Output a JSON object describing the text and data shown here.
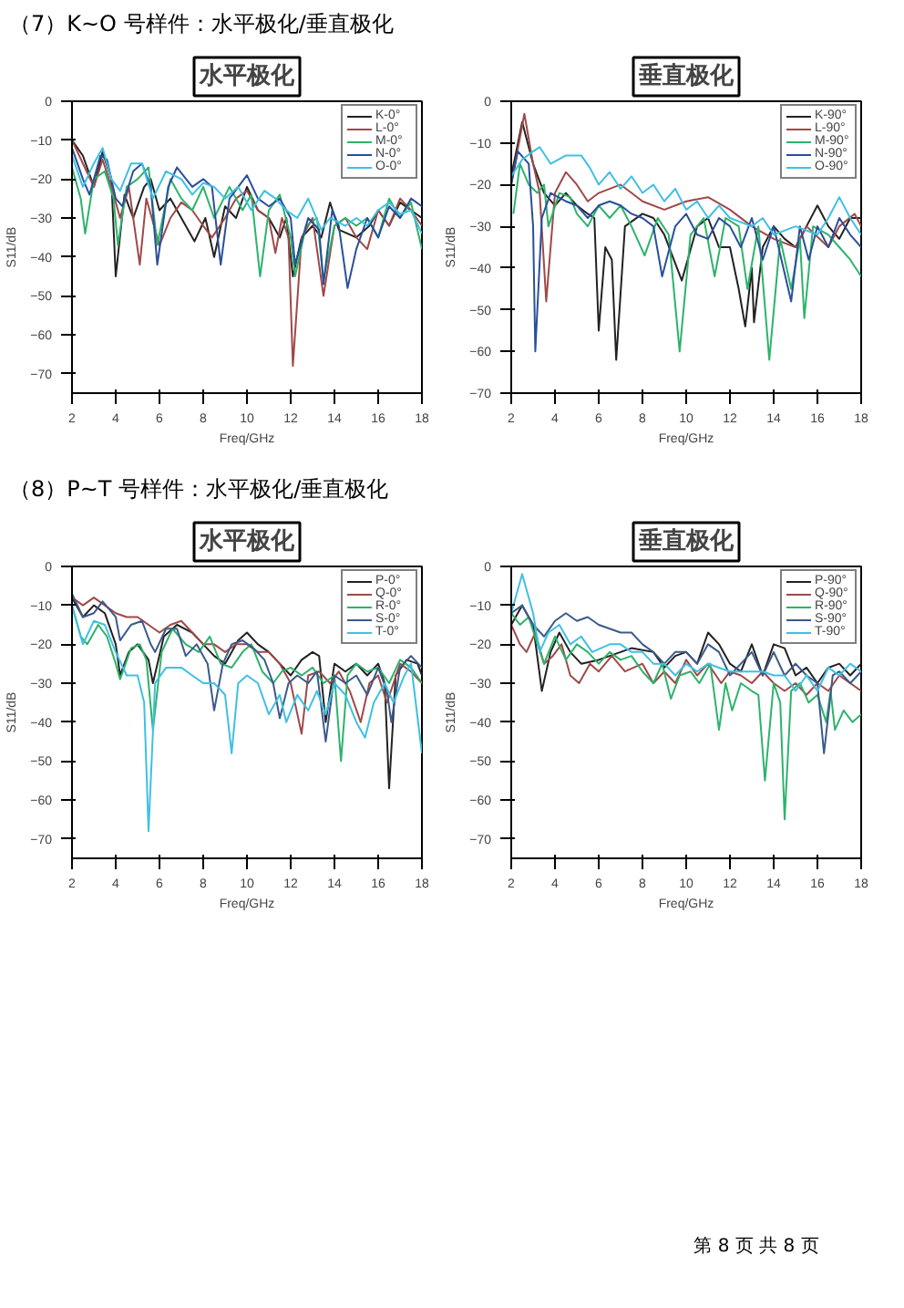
{
  "chart_data": [
    {
      "type": "line",
      "title": "水平极化",
      "annotations": [
        "（7）K~O 号样件：水平极化/垂直极化"
      ],
      "xlabel": "Freq/GHz",
      "ylabel": "S11/dB",
      "xlim": [
        2,
        18
      ],
      "xticks": [
        2,
        4,
        6,
        8,
        10,
        12,
        14,
        16,
        18
      ],
      "ylim": [
        -75,
        0
      ],
      "yticks": [
        0,
        -10,
        -20,
        -30,
        -40,
        -50,
        -60,
        -70
      ],
      "legend": "top right",
      "grid": false,
      "series": [
        {
          "name": "K-0°",
          "color": "#222222",
          "x": [
            2,
            2.5,
            3,
            3.4,
            3.8,
            4.0,
            4.4,
            4.8,
            5.3,
            5.6,
            6.0,
            6.5,
            7,
            7.6,
            8.1,
            8.5,
            9,
            9.5,
            10,
            10.5,
            11,
            11.5,
            11.8,
            12.1,
            12.5,
            13,
            13.4,
            13.8,
            14.2,
            15,
            15.6,
            16,
            16.5,
            17,
            17.5,
            18
          ],
          "values": [
            -10,
            -14,
            -22,
            -13,
            -20,
            -45,
            -24,
            -30,
            -22,
            -20,
            -28,
            -25,
            -30,
            -36,
            -30,
            -40,
            -27,
            -30,
            -22,
            -28,
            -30,
            -35,
            -30,
            -45,
            -35,
            -32,
            -35,
            -26,
            -33,
            -35,
            -32,
            -28,
            -32,
            -26,
            -28,
            -30
          ]
        },
        {
          "name": "L-0°",
          "color": "#a04848",
          "x": [
            2,
            2.5,
            3,
            3.4,
            3.8,
            4.2,
            4.6,
            5.1,
            5.4,
            6,
            6.5,
            7,
            7.5,
            8,
            8.4,
            9,
            9.5,
            10,
            10.5,
            11,
            11.3,
            11.6,
            11.9,
            12.1,
            12.5,
            13,
            13.5,
            14,
            14.5,
            15,
            15.5,
            16,
            16.5,
            17,
            17.5,
            18
          ],
          "values": [
            -10,
            -16,
            -22,
            -15,
            -22,
            -30,
            -22,
            -42,
            -25,
            -37,
            -30,
            -26,
            -28,
            -32,
            -35,
            -30,
            -25,
            -23,
            -28,
            -30,
            -39,
            -30,
            -35,
            -68,
            -35,
            -30,
            -50,
            -32,
            -30,
            -35,
            -38,
            -28,
            -32,
            -25,
            -28,
            -32
          ]
        },
        {
          "name": "M-0°",
          "color": "#2db36b",
          "x": [
            2,
            2.4,
            2.6,
            3.0,
            3.5,
            3.9,
            4.1,
            4.5,
            5.0,
            5.5,
            5.9,
            6.5,
            7,
            7.5,
            8,
            8.5,
            9.2,
            9.8,
            10.2,
            10.6,
            11,
            11.5,
            12,
            12.2,
            12.7,
            13.2,
            13.5,
            14,
            14.5,
            15,
            15.5,
            16,
            16.5,
            17,
            17.5,
            18
          ],
          "values": [
            -17,
            -25,
            -34,
            -20,
            -18,
            -25,
            -37,
            -22,
            -20,
            -17,
            -37,
            -20,
            -25,
            -28,
            -22,
            -30,
            -22,
            -28,
            -24,
            -45,
            -28,
            -24,
            -35,
            -45,
            -32,
            -30,
            -46,
            -32,
            -30,
            -32,
            -30,
            -35,
            -25,
            -30,
            -26,
            -38
          ]
        },
        {
          "name": "N-0°",
          "color": "#2a4f9a",
          "x": [
            2,
            2.5,
            2.8,
            3.3,
            3.6,
            4.0,
            4.3,
            4.8,
            5.2,
            5.6,
            5.9,
            6.4,
            6.8,
            7.5,
            8,
            8.4,
            8.8,
            9.2,
            9.6,
            10,
            10.5,
            11,
            11.5,
            12,
            12.2,
            12.8,
            13.3,
            13.5,
            13.9,
            14.2,
            14.6,
            15,
            15.5,
            16,
            16.5,
            17,
            17.5,
            18
          ],
          "values": [
            -12,
            -20,
            -24,
            -14,
            -15,
            -25,
            -27,
            -18,
            -16,
            -22,
            -42,
            -22,
            -17,
            -22,
            -20,
            -22,
            -42,
            -25,
            -22,
            -19,
            -25,
            -27,
            -25,
            -30,
            -42,
            -30,
            -33,
            -47,
            -28,
            -32,
            -48,
            -38,
            -30,
            -35,
            -27,
            -30,
            -25,
            -27
          ]
        },
        {
          "name": "O-0°",
          "color": "#3fc0e3",
          "x": [
            2,
            2.5,
            3,
            3.4,
            3.8,
            4.2,
            4.7,
            5.2,
            5.7,
            6.3,
            7,
            7.5,
            8,
            8.5,
            9,
            9.6,
            10.2,
            10.8,
            11.3,
            11.8,
            12.3,
            12.8,
            13.4,
            13.8,
            14.5,
            15,
            15.5,
            16,
            16.5,
            17,
            17.5,
            18
          ],
          "values": [
            -14,
            -22,
            -16,
            -12,
            -20,
            -23,
            -16,
            -16,
            -25,
            -18,
            -20,
            -24,
            -21,
            -22,
            -25,
            -22,
            -28,
            -23,
            -25,
            -28,
            -30,
            -25,
            -33,
            -30,
            -32,
            -30,
            -32,
            -28,
            -26,
            -29,
            -28,
            -34
          ]
        }
      ]
    },
    {
      "type": "line",
      "title": "垂直极化",
      "xlabel": "Freq/GHz",
      "ylabel": "S11/dB",
      "xlim": [
        2,
        18
      ],
      "xticks": [
        2,
        4,
        6,
        8,
        10,
        12,
        14,
        16,
        18
      ],
      "ylim": [
        -70,
        0
      ],
      "yticks": [
        0,
        -10,
        -20,
        -30,
        -40,
        -50,
        -60,
        -70
      ],
      "legend": "top right",
      "grid": false,
      "series": [
        {
          "name": "K-90°",
          "color": "#222222",
          "x": [
            2,
            2.5,
            3,
            3.5,
            4,
            4.5,
            5,
            5.5,
            5.8,
            6.0,
            6.3,
            6.6,
            6.8,
            7.2,
            8,
            8.5,
            9,
            9.8,
            10.5,
            11,
            11.5,
            12,
            12.4,
            12.7,
            13,
            13.1,
            13.5,
            14,
            14.5,
            15,
            15.5,
            16,
            16.5,
            17,
            17.5,
            18
          ],
          "values": [
            -18,
            -5,
            -15,
            -22,
            -25,
            -22,
            -25,
            -27,
            -28,
            -55,
            -35,
            -38,
            -62,
            -30,
            -27,
            -28,
            -32,
            -43,
            -30,
            -28,
            -35,
            -35,
            -45,
            -54,
            -40,
            -53,
            -35,
            -30,
            -33,
            -35,
            -30,
            -25,
            -30,
            -33,
            -28,
            -28
          ]
        },
        {
          "name": "L-90°",
          "color": "#a04848",
          "x": [
            2,
            2.6,
            3.0,
            3.3,
            3.6,
            4,
            4.5,
            5,
            5.5,
            6,
            7,
            7.5,
            8,
            9,
            10,
            11,
            12,
            13,
            14,
            15,
            15.5,
            16.5,
            17,
            17.7,
            18
          ],
          "values": [
            -20,
            -3,
            -15,
            -22,
            -48,
            -22,
            -17,
            -20,
            -24,
            -22,
            -20,
            -22,
            -24,
            -26,
            -24,
            -23,
            -26,
            -30,
            -33,
            -35,
            -30,
            -35,
            -30,
            -27,
            -30
          ]
        },
        {
          "name": "M-90°",
          "color": "#2db36b",
          "x": [
            2.1,
            2.4,
            2.8,
            3.2,
            3.5,
            3.7,
            4.2,
            4.7,
            5,
            5.5,
            6,
            6.5,
            7,
            7.5,
            8.1,
            8.7,
            9.2,
            9.7,
            10.2,
            10.8,
            11.3,
            11.8,
            12.4,
            12.8,
            13.3,
            13.8,
            14.3,
            14.8,
            15.2,
            15.4,
            15.8,
            16.5,
            17,
            17.5,
            18
          ],
          "values": [
            -27,
            -15,
            -20,
            -22,
            -20,
            -30,
            -22,
            -23,
            -27,
            -30,
            -25,
            -28,
            -25,
            -30,
            -37,
            -28,
            -32,
            -60,
            -32,
            -28,
            -42,
            -28,
            -30,
            -45,
            -30,
            -62,
            -33,
            -45,
            -33,
            -52,
            -30,
            -32,
            -35,
            -38,
            -42
          ]
        },
        {
          "name": "N-90°",
          "color": "#2a4f9a",
          "x": [
            2,
            2.3,
            2.8,
            3,
            3.1,
            3.4,
            3.8,
            4.5,
            5,
            5.5,
            6,
            6.5,
            7,
            7.5,
            8,
            8.5,
            8.9,
            9.5,
            10,
            10.5,
            11,
            11.5,
            12,
            12.5,
            13,
            13.5,
            14,
            14.8,
            15.2,
            15.6,
            16,
            16.5,
            17,
            17.5,
            18
          ],
          "values": [
            -20,
            -12,
            -15,
            -30,
            -60,
            -28,
            -22,
            -24,
            -25,
            -28,
            -25,
            -24,
            -25,
            -27,
            -28,
            -30,
            -42,
            -30,
            -27,
            -32,
            -33,
            -28,
            -30,
            -35,
            -28,
            -38,
            -30,
            -48,
            -30,
            -38,
            -30,
            -35,
            -28,
            -32,
            -35
          ]
        },
        {
          "name": "O-90°",
          "color": "#3fc0e3",
          "x": [
            2,
            2.5,
            3,
            3.3,
            3.8,
            4.5,
            5.2,
            5.6,
            6,
            6.5,
            7,
            7.5,
            8,
            8.5,
            9,
            9.5,
            10,
            10.5,
            11,
            11.5,
            12,
            13,
            13.5,
            14,
            15,
            16,
            16.5,
            17,
            17.5,
            18
          ],
          "values": [
            -18,
            -14,
            -12,
            -11,
            -15,
            -13,
            -13,
            -16,
            -20,
            -17,
            -21,
            -18,
            -22,
            -20,
            -24,
            -21,
            -26,
            -24,
            -28,
            -25,
            -28,
            -30,
            -28,
            -32,
            -30,
            -32,
            -28,
            -23,
            -28,
            -32
          ]
        }
      ]
    },
    {
      "type": "line",
      "title": "水平极化",
      "annotations": [
        "（8）P~T 号样件：水平极化/垂直极化"
      ],
      "xlabel": "Freq/GHz",
      "ylabel": "S11/dB",
      "xlim": [
        2,
        18
      ],
      "xticks": [
        2,
        4,
        6,
        8,
        10,
        12,
        14,
        16,
        18
      ],
      "ylim": [
        -75,
        0
      ],
      "yticks": [
        0,
        -10,
        -20,
        -30,
        -40,
        -50,
        -60,
        -70
      ],
      "legend": "top right",
      "grid": false,
      "series": [
        {
          "name": "P-0°",
          "color": "#222222",
          "x": [
            2,
            2.5,
            3,
            3.5,
            4,
            4.2,
            4.6,
            5,
            5.5,
            5.7,
            6.2,
            6.8,
            7.5,
            8,
            8.5,
            9,
            9.6,
            10,
            10.5,
            11,
            11.5,
            12,
            12.5,
            13,
            13.3,
            13.6,
            14,
            14.5,
            15,
            15.5,
            16,
            16.3,
            16.5,
            16.8,
            17.3,
            17.8,
            18
          ],
          "values": [
            -8,
            -13,
            -10,
            -12,
            -20,
            -28,
            -22,
            -20,
            -24,
            -30,
            -18,
            -15,
            -17,
            -20,
            -23,
            -25,
            -19,
            -17,
            -20,
            -22,
            -25,
            -28,
            -24,
            -22,
            -23,
            -40,
            -25,
            -27,
            -25,
            -28,
            -25,
            -30,
            -57,
            -28,
            -24,
            -25,
            -28
          ]
        },
        {
          "name": "Q-0°",
          "color": "#a04848",
          "x": [
            2,
            2.5,
            3,
            3.5,
            4,
            4.5,
            5,
            5.5,
            6,
            6.5,
            7,
            7.5,
            8,
            8.5,
            9,
            9.5,
            10,
            10.5,
            11,
            11.5,
            12,
            12.5,
            12.8,
            13.3,
            13.8,
            14.2,
            14.7,
            15.2,
            15.6,
            16,
            16.4,
            17,
            17.5,
            18
          ],
          "values": [
            -8,
            -10,
            -8,
            -10,
            -12,
            -13,
            -13,
            -15,
            -17,
            -15,
            -14,
            -17,
            -20,
            -20,
            -22,
            -20,
            -20,
            -22,
            -22,
            -25,
            -30,
            -43,
            -28,
            -27,
            -30,
            -27,
            -32,
            -40,
            -30,
            -28,
            -35,
            -25,
            -27,
            -30
          ]
        },
        {
          "name": "R-0°",
          "color": "#2db36b",
          "x": [
            2,
            2.4,
            2.7,
            3.2,
            3.6,
            4.0,
            4.2,
            4.7,
            5.1,
            5.4,
            5.7,
            6.1,
            6.6,
            7.2,
            7.8,
            8.3,
            8.8,
            9.3,
            9.8,
            10.2,
            10.7,
            11.2,
            11.6,
            12,
            12.5,
            13,
            13.5,
            14,
            14.3,
            14.6,
            15,
            15.5,
            16,
            16.5,
            17,
            17.5,
            18
          ],
          "values": [
            -10,
            -18,
            -20,
            -15,
            -18,
            -25,
            -29,
            -21,
            -20,
            -24,
            -42,
            -22,
            -16,
            -20,
            -22,
            -18,
            -25,
            -26,
            -22,
            -20,
            -27,
            -30,
            -27,
            -26,
            -28,
            -26,
            -30,
            -28,
            -50,
            -28,
            -25,
            -27,
            -26,
            -30,
            -24,
            -26,
            -30
          ]
        },
        {
          "name": "S-0°",
          "color": "#3b5a8a",
          "x": [
            2,
            2.5,
            3,
            3.4,
            4,
            4.2,
            4.7,
            5.2,
            5.6,
            5.8,
            6.3,
            6.8,
            7.2,
            7.7,
            8.2,
            8.5,
            8.9,
            9.3,
            9.8,
            10.3,
            10.8,
            11.2,
            11.5,
            11.9,
            12.3,
            12.8,
            13.2,
            13.6,
            14,
            14.5,
            15,
            15.5,
            16,
            16.4,
            16.6,
            17,
            17.5,
            18
          ],
          "values": [
            -7,
            -13,
            -12,
            -9,
            -13,
            -19,
            -15,
            -14,
            -20,
            -22,
            -16,
            -16,
            -23,
            -20,
            -25,
            -37,
            -25,
            -20,
            -19,
            -21,
            -24,
            -30,
            -39,
            -30,
            -28,
            -30,
            -27,
            -45,
            -28,
            -30,
            -28,
            -33,
            -26,
            -32,
            -40,
            -26,
            -23,
            -26
          ]
        },
        {
          "name": "T-0°",
          "color": "#3fc0e3",
          "x": [
            2,
            2.5,
            3,
            3.5,
            4,
            4.5,
            5,
            5.3,
            5.5,
            5.8,
            6.3,
            7,
            7.5,
            8,
            8.5,
            9,
            9.3,
            9.6,
            10,
            10.5,
            11,
            11.5,
            11.8,
            12.3,
            12.8,
            13.2,
            13.6,
            14,
            14.5,
            15,
            15.4,
            15.8,
            16.3,
            16.7,
            17.2,
            17.5,
            18
          ],
          "values": [
            -10,
            -20,
            -14,
            -15,
            -22,
            -28,
            -28,
            -35,
            -68,
            -30,
            -26,
            -26,
            -28,
            -30,
            -30,
            -33,
            -48,
            -30,
            -28,
            -30,
            -38,
            -33,
            -40,
            -33,
            -37,
            -32,
            -38,
            -30,
            -33,
            -40,
            -44,
            -35,
            -30,
            -35,
            -28,
            -25,
            -48
          ]
        }
      ]
    },
    {
      "type": "line",
      "title": "垂直极化",
      "annotations": [
        "第 8 页 共 8 页"
      ],
      "xlabel": "Freq/GHz",
      "ylabel": "S11/dB",
      "xlim": [
        2,
        18
      ],
      "xticks": [
        2,
        4,
        6,
        8,
        10,
        12,
        14,
        16,
        18
      ],
      "ylim": [
        -75,
        0
      ],
      "yticks": [
        0,
        -10,
        -20,
        -30,
        -40,
        -50,
        -60,
        -70
      ],
      "legend": "top right",
      "grid": false,
      "series": [
        {
          "name": "P-90°",
          "color": "#222222",
          "x": [
            2,
            2.5,
            3,
            3.4,
            3.8,
            4.2,
            4.7,
            5.2,
            6,
            7,
            7.5,
            8.5,
            9,
            9.5,
            10,
            10.5,
            11,
            11.5,
            12,
            12.5,
            13,
            13.5,
            14,
            14.5,
            15,
            15.5,
            16,
            16.5,
            17,
            17.5,
            18
          ],
          "values": [
            -15,
            -10,
            -15,
            -32,
            -22,
            -17,
            -22,
            -25,
            -24,
            -22,
            -21,
            -22,
            -26,
            -23,
            -22,
            -25,
            -17,
            -20,
            -25,
            -27,
            -20,
            -28,
            -20,
            -21,
            -28,
            -26,
            -30,
            -26,
            -25,
            -28,
            -25
          ]
        },
        {
          "name": "Q-90°",
          "color": "#a04848",
          "x": [
            2,
            2.4,
            2.7,
            3.1,
            3.5,
            3.9,
            4.3,
            4.7,
            5.1,
            5.6,
            6,
            6.6,
            7.2,
            8,
            8.5,
            9,
            9.5,
            10,
            10.5,
            11,
            11.6,
            12,
            12.5,
            13,
            13.5,
            14,
            14.5,
            15,
            15.5,
            16,
            16.5,
            17,
            17.5,
            18
          ],
          "values": [
            -15,
            -20,
            -22,
            -17,
            -25,
            -23,
            -20,
            -28,
            -30,
            -25,
            -27,
            -23,
            -27,
            -25,
            -30,
            -27,
            -30,
            -24,
            -28,
            -25,
            -30,
            -27,
            -28,
            -30,
            -27,
            -30,
            -32,
            -30,
            -33,
            -30,
            -32,
            -28,
            -30,
            -32
          ]
        },
        {
          "name": "R-90°",
          "color": "#2db36b",
          "x": [
            2,
            2.4,
            2.8,
            3.2,
            3.5,
            4,
            4.5,
            5,
            5.5,
            6,
            6.5,
            7,
            7.5,
            8,
            8.5,
            8.9,
            9.3,
            9.7,
            10.2,
            10.6,
            11.1,
            11.5,
            11.8,
            12.1,
            12.5,
            13,
            13.3,
            13.6,
            14,
            14.3,
            14.5,
            14.8,
            15.2,
            15.6,
            16,
            16.4,
            16.6,
            16.8,
            17.2,
            17.6,
            18
          ],
          "values": [
            -12,
            -15,
            -13,
            -20,
            -25,
            -18,
            -24,
            -20,
            -22,
            -25,
            -22,
            -24,
            -23,
            -27,
            -30,
            -25,
            -34,
            -28,
            -27,
            -30,
            -25,
            -42,
            -30,
            -37,
            -30,
            -32,
            -33,
            -55,
            -30,
            -35,
            -65,
            -32,
            -30,
            -35,
            -33,
            -40,
            -32,
            -42,
            -37,
            -40,
            -38
          ]
        },
        {
          "name": "S-90°",
          "color": "#3b5a8a",
          "x": [
            2,
            2.5,
            3,
            3.5,
            4,
            4.5,
            5,
            5.5,
            6,
            6.5,
            7,
            7.5,
            8,
            8.5,
            9,
            9.5,
            10,
            10.5,
            11,
            11.5,
            12,
            12.5,
            13,
            13.5,
            14,
            14.5,
            15,
            15.5,
            16,
            16.3,
            16.7,
            17,
            17.5,
            18
          ],
          "values": [
            -12,
            -10,
            -15,
            -18,
            -14,
            -12,
            -14,
            -13,
            -15,
            -16,
            -17,
            -17,
            -20,
            -22,
            -25,
            -22,
            -22,
            -25,
            -20,
            -22,
            -28,
            -25,
            -22,
            -28,
            -22,
            -28,
            -25,
            -28,
            -30,
            -48,
            -28,
            -27,
            -30,
            -27
          ]
        },
        {
          "name": "T-90°",
          "color": "#3fc0e3",
          "x": [
            2,
            2.5,
            3,
            3.3,
            3.7,
            4.2,
            4.7,
            5.2,
            5.7,
            6.5,
            7,
            7.5,
            8,
            8.5,
            9,
            9.5,
            10,
            10.5,
            11,
            11.5,
            12,
            13,
            13.5,
            14,
            14.5,
            15,
            15.5,
            16,
            16.5,
            17,
            17.5,
            18
          ],
          "values": [
            -12,
            -2,
            -12,
            -22,
            -17,
            -15,
            -20,
            -18,
            -22,
            -20,
            -20,
            -22,
            -22,
            -25,
            -25,
            -28,
            -25,
            -27,
            -25,
            -26,
            -27,
            -27,
            -27,
            -28,
            -28,
            -32,
            -28,
            -32,
            -26,
            -28,
            -25,
            -27
          ]
        }
      ]
    }
  ]
}
